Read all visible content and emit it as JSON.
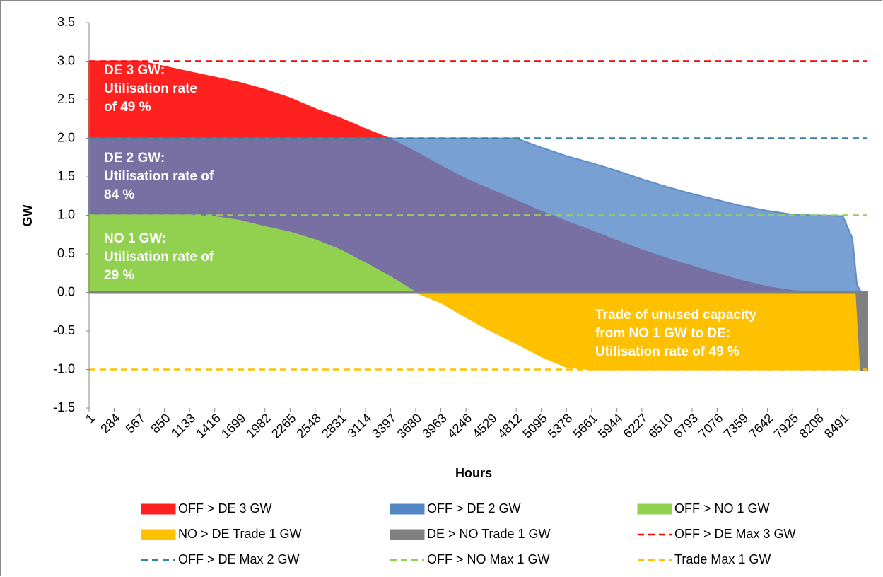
{
  "chart_data": {
    "type": "area",
    "xlabel": "Hours",
    "ylabel": "GW",
    "x": [
      1,
      284,
      567,
      850,
      1133,
      1416,
      1699,
      1982,
      2265,
      2548,
      2831,
      3114,
      3397,
      3680,
      3963,
      4246,
      4529,
      4812,
      5095,
      5378,
      5661,
      5944,
      6227,
      6510,
      6793,
      7076,
      7359,
      7642,
      7925,
      8208,
      8491,
      8600,
      8650,
      8700,
      8760
    ],
    "xlim": [
      1,
      8760
    ],
    "xticks": [
      1,
      284,
      567,
      850,
      1133,
      1416,
      1699,
      1982,
      2265,
      2548,
      2831,
      3114,
      3397,
      3680,
      3963,
      4246,
      4529,
      4812,
      5095,
      5378,
      5661,
      5944,
      6227,
      6510,
      6793,
      7076,
      7359,
      7642,
      7925,
      8208,
      8491
    ],
    "ylim": [
      -1.5,
      3.5
    ],
    "yticks": [
      3.5,
      {
        "value": 3,
        "label": "3.0"
      },
      2.5,
      {
        "value": 2,
        "label": "2.0"
      },
      1.5,
      {
        "value": 1,
        "label": "1.0"
      },
      0.5,
      {
        "value": 0,
        "label": "0.0"
      },
      -0.5,
      {
        "value": -1,
        "label": "-1.0"
      },
      -1.5
    ],
    "series": [
      {
        "name": "OFF > DE 3 GW",
        "kind": "area",
        "color": "#ff2020",
        "values": [
          3,
          3,
          3,
          2.93,
          2.86,
          2.79,
          2.72,
          2.63,
          2.52,
          2.38,
          2.26,
          2.12,
          1.99,
          1.82,
          1.64,
          1.47,
          1.33,
          1.19,
          1.05,
          0.92,
          0.8,
          0.67,
          0.55,
          0.44,
          0.34,
          0.24,
          0.15,
          0.07,
          0.02,
          0,
          0,
          0,
          0,
          0,
          0
        ]
      },
      {
        "name": "OFF > DE 2 GW",
        "kind": "area",
        "color": "#5487c6",
        "values": [
          2,
          2,
          2,
          2,
          2,
          2,
          2,
          2,
          2,
          2,
          2,
          2,
          2,
          2,
          2,
          2,
          2,
          2,
          1.88,
          1.77,
          1.68,
          1.58,
          1.47,
          1.37,
          1.28,
          1.2,
          1.12,
          1.06,
          1.01,
          1,
          0.99,
          0.7,
          0.1,
          0,
          0
        ]
      },
      {
        "name": "OFF > NO 1 GW",
        "kind": "area",
        "color": "#92d050",
        "values": [
          1,
          1,
          1,
          1,
          1,
          0.98,
          0.93,
          0.85,
          0.78,
          0.68,
          0.55,
          0.38,
          0.2,
          0,
          0,
          0,
          0,
          0,
          0,
          0,
          0,
          0,
          0,
          0,
          0,
          0,
          0,
          0,
          0,
          0,
          0,
          0,
          0,
          0,
          0
        ]
      },
      {
        "name": "NO > DE Trade 1 GW",
        "kind": "area",
        "color": "#ffc000",
        "values": [
          0,
          0,
          0,
          0,
          0,
          0,
          0,
          0,
          0,
          0,
          0,
          0,
          0,
          0,
          -0.13,
          -0.32,
          -0.5,
          -0.66,
          -0.83,
          -0.97,
          -1,
          -1,
          -1,
          -1,
          -1,
          -1,
          -1,
          -1,
          -1,
          -1,
          -1,
          -1,
          -1,
          -1,
          -1
        ]
      },
      {
        "name": "DE > NO Trade 1 GW",
        "kind": "area",
        "color": "#808080",
        "values": [
          0,
          0,
          0,
          0,
          0,
          0,
          0,
          0,
          0,
          0,
          0,
          0,
          0,
          0,
          0,
          0,
          0,
          0,
          0,
          0,
          0,
          0,
          0,
          0,
          0,
          0,
          0,
          0,
          0,
          0,
          0,
          0,
          0,
          -1,
          -1
        ]
      },
      {
        "name": "OFF > DE Max 3 GW",
        "kind": "dashed",
        "color": "#ff0000",
        "values": [
          3,
          3,
          3,
          3,
          3,
          3,
          3,
          3,
          3,
          3,
          3,
          3,
          3,
          3,
          3,
          3,
          3,
          3,
          3,
          3,
          3,
          3,
          3,
          3,
          3,
          3,
          3,
          3,
          3,
          3,
          3,
          3,
          3,
          3,
          3
        ]
      },
      {
        "name": "OFF > DE Max 2 GW",
        "kind": "dashed",
        "color": "#31859c",
        "values": [
          2,
          2,
          2,
          2,
          2,
          2,
          2,
          2,
          2,
          2,
          2,
          2,
          2,
          2,
          2,
          2,
          2,
          2,
          2,
          2,
          2,
          2,
          2,
          2,
          2,
          2,
          2,
          2,
          2,
          2,
          2,
          2,
          2,
          2,
          2
        ]
      },
      {
        "name": "OFF > NO Max 1 GW",
        "kind": "dashed",
        "color": "#92d050",
        "values": [
          1,
          1,
          1,
          1,
          1,
          1,
          1,
          1,
          1,
          1,
          1,
          1,
          1,
          1,
          1,
          1,
          1,
          1,
          1,
          1,
          1,
          1,
          1,
          1,
          1,
          1,
          1,
          1,
          1,
          1,
          1,
          1,
          1,
          1,
          1
        ]
      },
      {
        "name": "Trade Max 1 GW",
        "kind": "dashed",
        "color": "#ffc000",
        "values": [
          -1,
          -1,
          -1,
          -1,
          -1,
          -1,
          -1,
          -1,
          -1,
          -1,
          -1,
          -1,
          -1,
          -1,
          -1,
          -1,
          -1,
          -1,
          -1,
          -1,
          -1,
          -1,
          -1,
          -1,
          -1,
          -1,
          -1,
          -1,
          -1,
          -1,
          -1,
          -1,
          -1,
          -1,
          -1
        ]
      }
    ],
    "annotations": [
      [
        "DE 3 GW:",
        "Utilisation rate",
        "of 49 %"
      ],
      [
        "DE 2 GW:",
        "Utilisation rate of",
        "84 %"
      ],
      [
        "NO 1 GW:",
        "Utilisation rate of",
        "29 %"
      ],
      [
        "Trade of unused capacity",
        "from NO 1 GW  to DE:",
        "Utilisation rate of 49 %"
      ]
    ]
  }
}
